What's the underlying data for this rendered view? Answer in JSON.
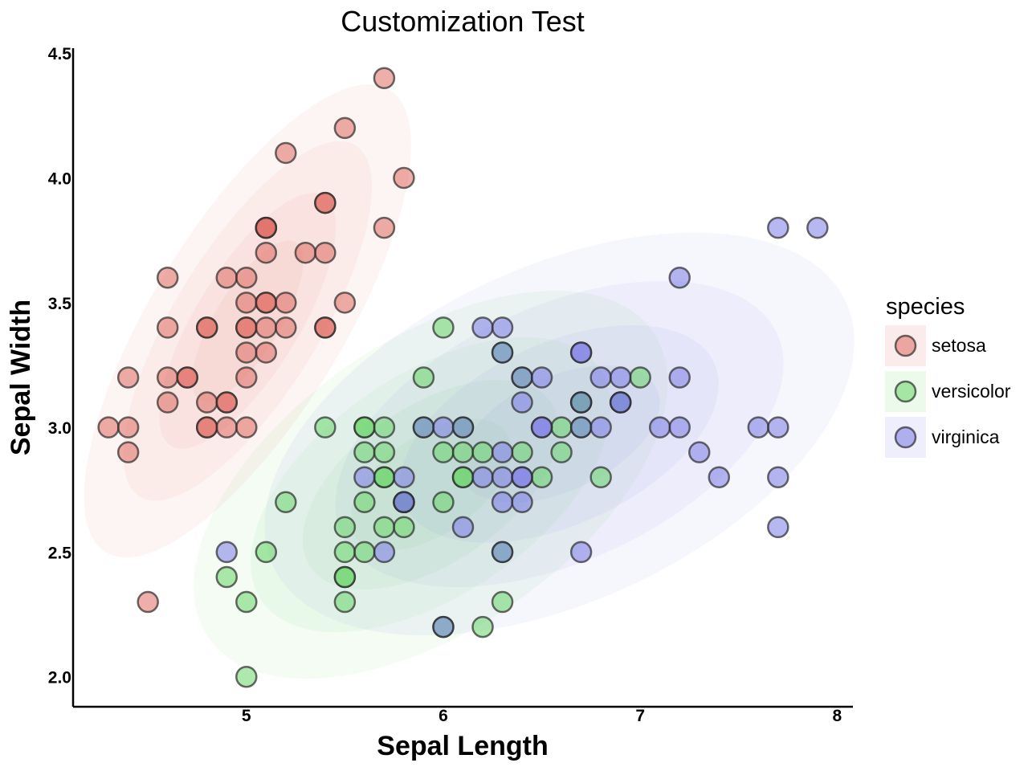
{
  "chart_data": {
    "type": "scatter",
    "title": "Customization Test",
    "xlabel": "Sepal Length",
    "ylabel": "Sepal Width",
    "xlim": [
      4.12,
      8.08
    ],
    "ylim": [
      1.88,
      4.52
    ],
    "xticks": [
      5,
      6,
      7,
      8
    ],
    "xtick_labels": [
      "5",
      "6",
      "7",
      "8"
    ],
    "yticks": [
      2.0,
      2.5,
      3.0,
      3.5,
      4.0,
      4.5
    ],
    "ytick_labels": [
      "2.0",
      "2.5",
      "3.0",
      "3.5",
      "4.0",
      "4.5"
    ],
    "grid": false,
    "legend": {
      "title": "species",
      "placement": "right"
    },
    "overlay": "density contours",
    "series": [
      {
        "name": "setosa",
        "color": "#e06b63",
        "points": [
          [
            4.3,
            3.0
          ],
          [
            4.4,
            3.0
          ],
          [
            4.4,
            2.9
          ],
          [
            4.4,
            3.2
          ],
          [
            4.5,
            2.3
          ],
          [
            4.6,
            3.6
          ],
          [
            4.6,
            3.4
          ],
          [
            4.6,
            3.2
          ],
          [
            4.6,
            3.1
          ],
          [
            4.7,
            3.2
          ],
          [
            4.7,
            3.2
          ],
          [
            4.8,
            3.4
          ],
          [
            4.8,
            3.4
          ],
          [
            4.8,
            3.1
          ],
          [
            4.8,
            3.0
          ],
          [
            4.8,
            3.0
          ],
          [
            4.9,
            3.6
          ],
          [
            4.9,
            3.1
          ],
          [
            4.9,
            3.1
          ],
          [
            4.9,
            3.0
          ],
          [
            5.0,
            3.6
          ],
          [
            5.0,
            3.5
          ],
          [
            5.0,
            3.4
          ],
          [
            5.0,
            3.4
          ],
          [
            5.0,
            3.3
          ],
          [
            5.0,
            3.2
          ],
          [
            5.0,
            3.0
          ],
          [
            5.1,
            3.8
          ],
          [
            5.1,
            3.8
          ],
          [
            5.1,
            3.8
          ],
          [
            5.1,
            3.7
          ],
          [
            5.1,
            3.5
          ],
          [
            5.1,
            3.5
          ],
          [
            5.1,
            3.4
          ],
          [
            5.1,
            3.3
          ],
          [
            5.2,
            4.1
          ],
          [
            5.2,
            3.5
          ],
          [
            5.2,
            3.4
          ],
          [
            5.3,
            3.7
          ],
          [
            5.4,
            3.9
          ],
          [
            5.4,
            3.9
          ],
          [
            5.4,
            3.7
          ],
          [
            5.4,
            3.4
          ],
          [
            5.4,
            3.4
          ],
          [
            5.5,
            4.2
          ],
          [
            5.5,
            3.5
          ],
          [
            5.7,
            4.4
          ],
          [
            5.7,
            3.8
          ],
          [
            5.8,
            4.0
          ]
        ]
      },
      {
        "name": "versicolor",
        "color": "#6ad66a",
        "points": [
          [
            4.9,
            2.4
          ],
          [
            5.0,
            2.0
          ],
          [
            5.0,
            2.3
          ],
          [
            5.1,
            2.5
          ],
          [
            5.2,
            2.7
          ],
          [
            5.4,
            3.0
          ],
          [
            5.5,
            2.6
          ],
          [
            5.5,
            2.5
          ],
          [
            5.5,
            2.4
          ],
          [
            5.5,
            2.4
          ],
          [
            5.5,
            2.3
          ],
          [
            5.6,
            3.0
          ],
          [
            5.6,
            3.0
          ],
          [
            5.6,
            2.9
          ],
          [
            5.6,
            2.7
          ],
          [
            5.6,
            2.5
          ],
          [
            5.7,
            3.0
          ],
          [
            5.7,
            2.9
          ],
          [
            5.7,
            2.8
          ],
          [
            5.7,
            2.8
          ],
          [
            5.7,
            2.6
          ],
          [
            5.8,
            2.7
          ],
          [
            5.8,
            2.7
          ],
          [
            5.8,
            2.6
          ],
          [
            5.9,
            3.2
          ],
          [
            5.9,
            3.0
          ],
          [
            6.0,
            3.4
          ],
          [
            6.0,
            2.9
          ],
          [
            6.0,
            2.7
          ],
          [
            6.0,
            2.2
          ],
          [
            6.1,
            3.0
          ],
          [
            6.1,
            2.9
          ],
          [
            6.1,
            2.8
          ],
          [
            6.1,
            2.8
          ],
          [
            6.2,
            2.9
          ],
          [
            6.2,
            2.2
          ],
          [
            6.3,
            3.3
          ],
          [
            6.3,
            2.5
          ],
          [
            6.3,
            2.3
          ],
          [
            6.4,
            3.2
          ],
          [
            6.4,
            2.9
          ],
          [
            6.5,
            2.8
          ],
          [
            6.6,
            3.0
          ],
          [
            6.6,
            2.9
          ],
          [
            6.7,
            3.1
          ],
          [
            6.7,
            3.0
          ],
          [
            6.7,
            3.1
          ],
          [
            6.8,
            2.8
          ],
          [
            6.9,
            3.1
          ],
          [
            7.0,
            3.2
          ]
        ]
      },
      {
        "name": "virginica",
        "color": "#7b7be6",
        "points": [
          [
            4.9,
            2.5
          ],
          [
            5.6,
            2.8
          ],
          [
            5.7,
            2.5
          ],
          [
            5.8,
            2.8
          ],
          [
            5.8,
            2.7
          ],
          [
            5.8,
            2.7
          ],
          [
            5.9,
            3.0
          ],
          [
            6.0,
            3.0
          ],
          [
            6.0,
            2.2
          ],
          [
            6.1,
            3.0
          ],
          [
            6.1,
            2.6
          ],
          [
            6.2,
            3.4
          ],
          [
            6.2,
            2.8
          ],
          [
            6.3,
            3.4
          ],
          [
            6.3,
            3.3
          ],
          [
            6.3,
            2.9
          ],
          [
            6.3,
            2.8
          ],
          [
            6.3,
            2.7
          ],
          [
            6.3,
            2.5
          ],
          [
            6.4,
            3.2
          ],
          [
            6.4,
            3.1
          ],
          [
            6.4,
            2.8
          ],
          [
            6.4,
            2.8
          ],
          [
            6.4,
            2.7
          ],
          [
            6.5,
            3.2
          ],
          [
            6.5,
            3.0
          ],
          [
            6.5,
            3.0
          ],
          [
            6.7,
            3.3
          ],
          [
            6.7,
            3.3
          ],
          [
            6.7,
            3.1
          ],
          [
            6.7,
            3.0
          ],
          [
            6.7,
            2.5
          ],
          [
            6.8,
            3.2
          ],
          [
            6.8,
            3.0
          ],
          [
            6.9,
            3.2
          ],
          [
            6.9,
            3.1
          ],
          [
            6.9,
            3.1
          ],
          [
            7.1,
            3.0
          ],
          [
            7.2,
            3.6
          ],
          [
            7.2,
            3.2
          ],
          [
            7.2,
            3.0
          ],
          [
            7.3,
            2.9
          ],
          [
            7.4,
            2.8
          ],
          [
            7.6,
            3.0
          ],
          [
            7.7,
            3.8
          ],
          [
            7.7,
            3.0
          ],
          [
            7.7,
            2.8
          ],
          [
            7.7,
            2.6
          ],
          [
            7.9,
            3.8
          ]
        ]
      }
    ]
  }
}
